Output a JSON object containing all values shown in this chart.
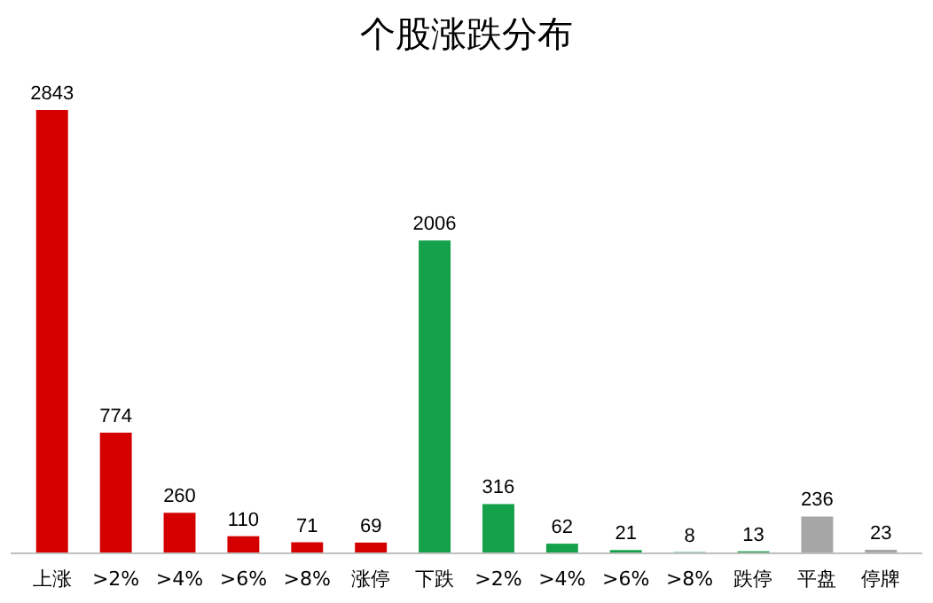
{
  "chart_data": {
    "type": "bar",
    "title": "个股涨跌分布",
    "categories": [
      "上涨",
      ">2%",
      ">4%",
      ">6%",
      ">8%",
      "涨停",
      "下跌",
      ">2%",
      ">4%",
      ">6%",
      ">8%",
      "跌停",
      "平盘",
      "停牌"
    ],
    "values": [
      2843,
      774,
      260,
      110,
      71,
      69,
      2006,
      316,
      62,
      21,
      8,
      13,
      236,
      23
    ],
    "colors": [
      "#d40000",
      "#d40000",
      "#d40000",
      "#d40000",
      "#d40000",
      "#d40000",
      "#15a04a",
      "#15a04a",
      "#15a04a",
      "#15a04a",
      "#15a04a",
      "#15a04a",
      "#a6a6a6",
      "#a6a6a6"
    ],
    "data_labels": true
  }
}
